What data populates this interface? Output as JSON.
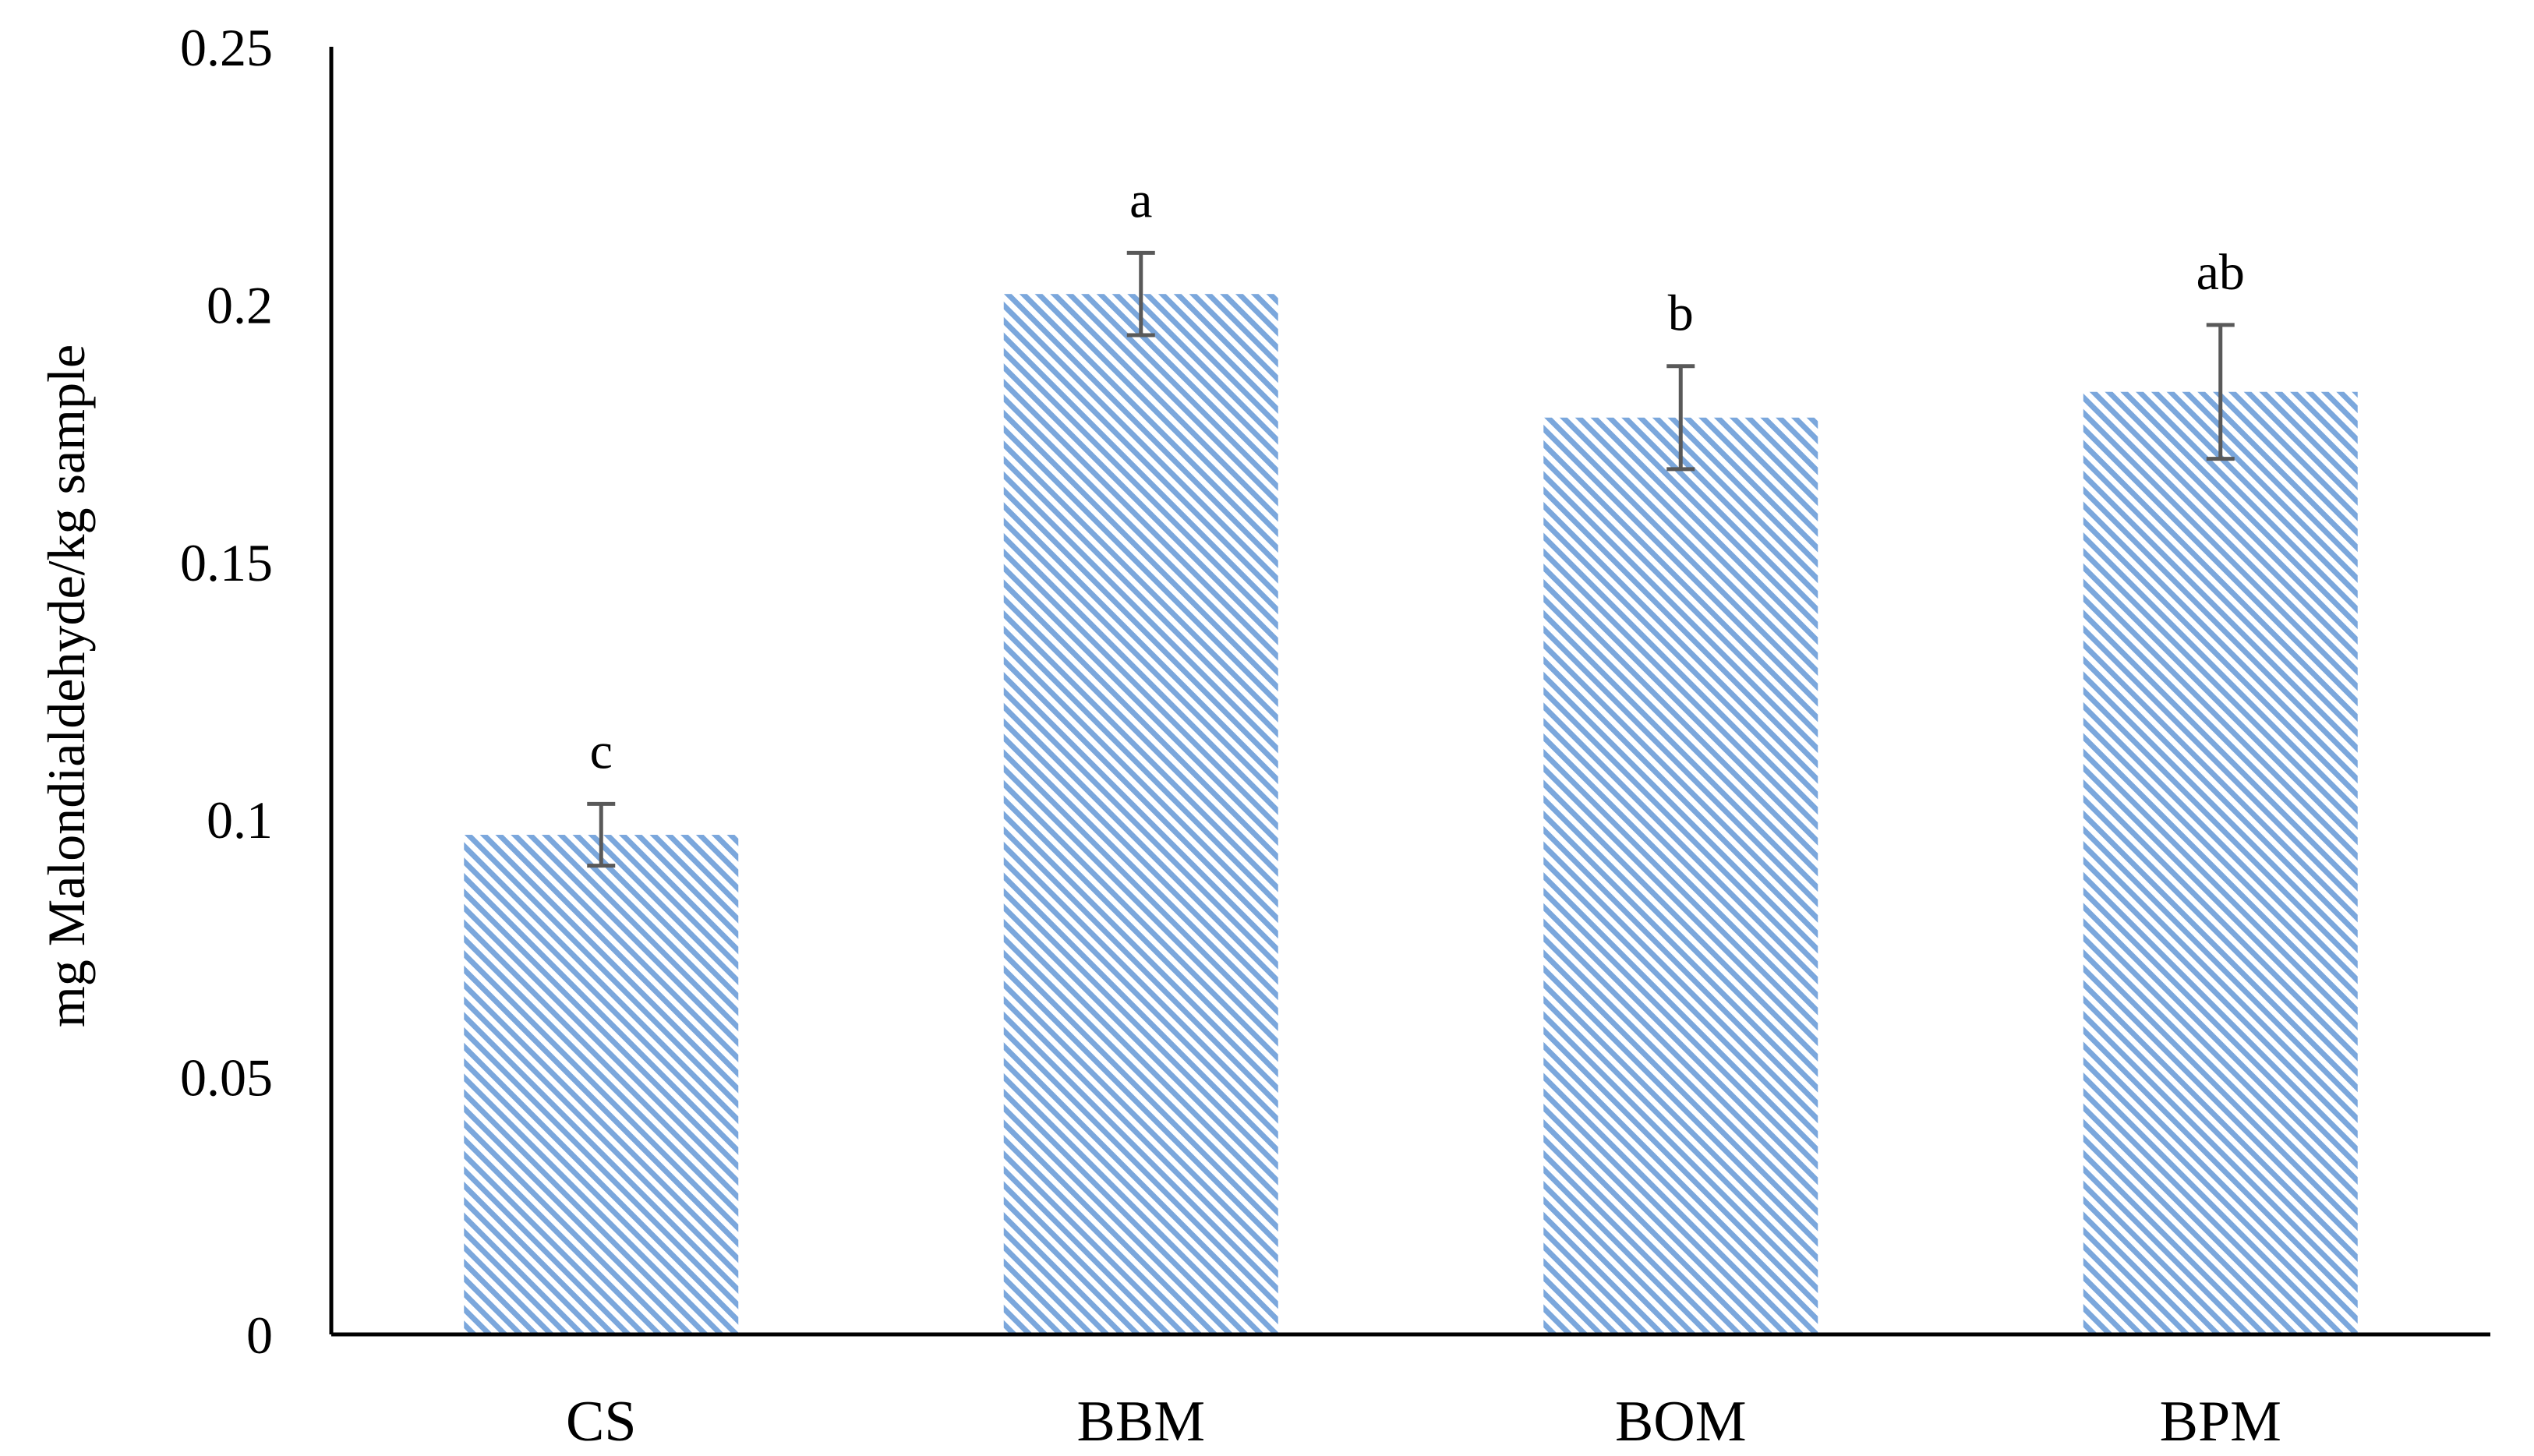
{
  "chart_data": {
    "type": "bar",
    "title": "",
    "xlabel": "",
    "ylabel": "mg Malondialdehyde/kg sample",
    "categories": [
      "CS",
      "BBM",
      "BOM",
      "BPM"
    ],
    "values": [
      0.097,
      0.202,
      0.178,
      0.183
    ],
    "error": [
      0.006,
      0.008,
      0.01,
      0.013
    ],
    "significance_labels": [
      "c",
      "a",
      "b",
      "ab"
    ],
    "ylim": [
      0,
      0.25
    ],
    "yticks": [
      0,
      0.05,
      0.1,
      0.15,
      0.2,
      0.25
    ],
    "ytick_labels": [
      "0",
      "0.05",
      "0.1",
      "0.15",
      "0.2",
      "0.25"
    ],
    "grid": false,
    "legend": "none",
    "bar_color": "#7ba7dc",
    "bar_fill": "diagonal-hatch",
    "error_bar_color": "#595959"
  }
}
